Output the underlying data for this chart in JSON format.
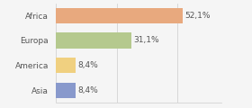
{
  "categories": [
    "Africa",
    "Europa",
    "America",
    "Asia"
  ],
  "values": [
    52.1,
    31.1,
    8.4,
    8.4
  ],
  "labels": [
    "52,1%",
    "31,1%",
    "8,4%",
    "8,4%"
  ],
  "bar_colors": [
    "#e8a97e",
    "#b5c98e",
    "#f0d080",
    "#8899cc"
  ],
  "background_color": "#f5f5f5",
  "xlim": [
    0,
    68
  ],
  "bar_height": 0.62,
  "label_fontsize": 6.5,
  "category_fontsize": 6.5,
  "grid_ticks": [
    0,
    25,
    50
  ]
}
